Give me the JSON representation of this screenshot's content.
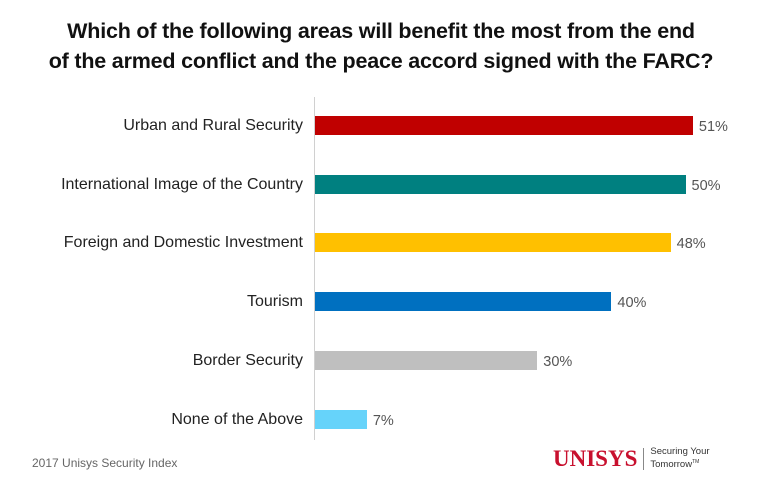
{
  "chart_data": {
    "type": "bar",
    "orientation": "horizontal",
    "title": "Which of the following areas will benefit the most from the end of the armed conflict and the peace accord signed with the FARC?",
    "categories": [
      "Urban and Rural Security",
      "International Image of the Country",
      "Foreign and Domestic Investment",
      "Tourism",
      "Border Security",
      "None of the Above"
    ],
    "values": [
      51,
      50,
      48,
      40,
      30,
      7
    ],
    "value_labels": [
      "51%",
      "50%",
      "48%",
      "40%",
      "30%",
      "7%"
    ],
    "colors": [
      "#c00000",
      "#008080",
      "#ffc000",
      "#0070c0",
      "#bfbfbf",
      "#66d3fa"
    ],
    "xlabel": "",
    "ylabel": "",
    "unit": "%",
    "grid": false,
    "legend": null
  },
  "header": {
    "title_line1": "Which of the following areas will benefit the most from the end",
    "title_line2": "of the armed conflict and the peace accord signed with the FARC?"
  },
  "footer": {
    "source": "2017 Unisys Security Index",
    "logo_word": "UNISYS",
    "tagline_line1": "Securing Your",
    "tagline_line2": "Tomorrow",
    "tagline_tm": "TM"
  }
}
